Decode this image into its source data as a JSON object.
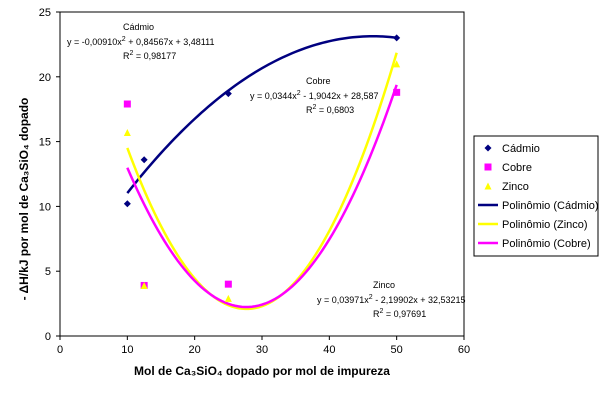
{
  "chart_data": {
    "type": "scatter",
    "xlabel": "Mol de Ca₃SiO₄ dopado por mol de impureza",
    "ylabel": "- ΔH/kJ por mol de Ca₃SiO₄ dopado",
    "xlim": [
      0,
      60
    ],
    "ylim": [
      0,
      25
    ],
    "xticks": [
      "0",
      "10",
      "20",
      "30",
      "40",
      "50",
      "60"
    ],
    "yticks": [
      "0",
      "5",
      "10",
      "15",
      "20",
      "25"
    ],
    "grid": false,
    "legend_position": "right",
    "series": [
      {
        "name": "Cádmio",
        "color": "#000080",
        "marker": "diamond",
        "points": [
          [
            10,
            10.2
          ],
          [
            12.5,
            13.6
          ],
          [
            25,
            18.7
          ],
          [
            50,
            23.0
          ]
        ]
      },
      {
        "name": "Cobre",
        "color": "#FF00FF",
        "marker": "square",
        "points": [
          [
            10,
            17.9
          ],
          [
            12.5,
            3.9
          ],
          [
            25,
            4.0
          ],
          [
            50,
            18.8
          ]
        ]
      },
      {
        "name": "Zinco",
        "color": "#FFFF00",
        "marker": "triangle",
        "points": [
          [
            10,
            15.7
          ],
          [
            12.5,
            3.9
          ],
          [
            25,
            2.9
          ],
          [
            50,
            21.0
          ]
        ]
      }
    ],
    "trendlines": [
      {
        "name": "Polinômio (Cádmio)",
        "color": "#000080",
        "coefficients": [
          -0.0091,
          0.84567,
          3.48111
        ],
        "x_range": [
          10,
          50
        ],
        "label_name": "Cádmio",
        "equation": "y = -0,00910x",
        "equation_rest": " + 0,84567x + 3,48111",
        "r2_label": "R",
        "r2_value": " = 0,98177"
      },
      {
        "name": "Polinômio (Zinco)",
        "color": "#FFFF00",
        "coefficients": [
          0.03971,
          -2.19902,
          32.53215
        ],
        "x_range": [
          10,
          50
        ],
        "label_name": "Zinco",
        "equation": "y = 0,03971x",
        "equation_rest": " - 2,19902x + 32,53215",
        "r2_label": "R",
        "r2_value": " = 0,97691"
      },
      {
        "name": "Polinômio (Cobre)",
        "color": "#FF00FF",
        "coefficients": [
          0.0344,
          -1.9042,
          28.587
        ],
        "x_range": [
          10,
          50
        ],
        "label_name": "Cobre",
        "equation": "y = 0,0344x",
        "equation_rest": " - 1,9042x + 28,587",
        "r2_label": "R",
        "r2_value": " = 0,6803"
      }
    ],
    "legend": [
      {
        "label": "Cádmio",
        "color": "#000080",
        "kind": "diamond"
      },
      {
        "label": "Cobre",
        "color": "#FF00FF",
        "kind": "square"
      },
      {
        "label": "Zinco",
        "color": "#FFFF00",
        "kind": "triangle"
      },
      {
        "label": "Polinômio (Cádmio)",
        "color": "#000080",
        "kind": "line"
      },
      {
        "label": "Polinômio (Zinco)",
        "color": "#FFFF00",
        "kind": "line"
      },
      {
        "label": "Polinômio (Cobre)",
        "color": "#FF00FF",
        "kind": "line"
      }
    ],
    "superscript": "2"
  }
}
